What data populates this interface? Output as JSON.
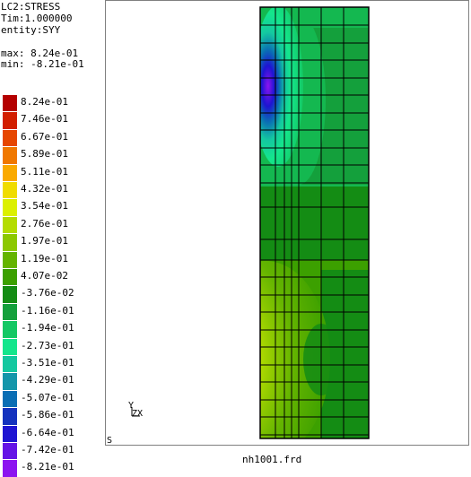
{
  "info": {
    "case": "LC2:STRESS",
    "time": "Tim:1.000000",
    "entity": "entity:SYY",
    "max": "max: 8.24e-01",
    "min": "min: -8.21e-01"
  },
  "legend": [
    {
      "label": "8.24e-01",
      "color": "#b40000"
    },
    {
      "label": "7.46e-01",
      "color": "#d21e00"
    },
    {
      "label": "6.67e-01",
      "color": "#e64600"
    },
    {
      "label": "5.89e-01",
      "color": "#f07800"
    },
    {
      "label": "5.11e-01",
      "color": "#faaa00"
    },
    {
      "label": "4.32e-01",
      "color": "#f0dc00"
    },
    {
      "label": "3.54e-01",
      "color": "#dcf000"
    },
    {
      "label": "2.76e-01",
      "color": "#b4dc00"
    },
    {
      "label": "1.97e-01",
      "color": "#8cc800"
    },
    {
      "label": "1.19e-01",
      "color": "#64b400"
    },
    {
      "label": "4.07e-02",
      "color": "#3ca000"
    },
    {
      "label": "-3.76e-02",
      "color": "#148c14"
    },
    {
      "label": "-1.16e-01",
      "color": "#14a03c"
    },
    {
      "label": "-1.94e-01",
      "color": "#14c864"
    },
    {
      "label": "-2.73e-01",
      "color": "#14e68c"
    },
    {
      "label": "-3.51e-01",
      "color": "#14c8a0"
    },
    {
      "label": "-4.29e-01",
      "color": "#1496aa"
    },
    {
      "label": "-5.07e-01",
      "color": "#0a6eb4"
    },
    {
      "label": "-5.86e-01",
      "color": "#1432be"
    },
    {
      "label": "-6.64e-01",
      "color": "#1e14d2"
    },
    {
      "label": "-7.42e-01",
      "color": "#6414e6"
    },
    {
      "label": "-8.21e-01",
      "color": "#8c14f0"
    }
  ],
  "axes": {
    "y": "Y",
    "zx": "ZX"
  },
  "view_flag": "S",
  "filename": "nh1001.frd"
}
